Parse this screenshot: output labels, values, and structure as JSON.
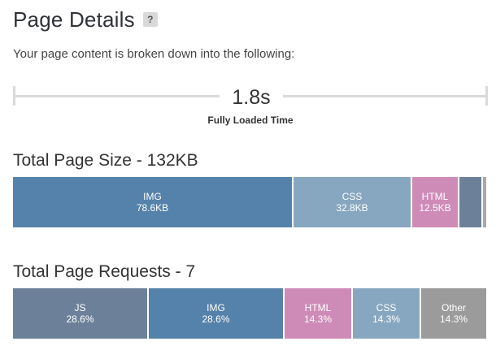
{
  "header": {
    "title": "Page Details",
    "help_label": "?"
  },
  "intro": "Your page content is broken down into the following:",
  "load_time": {
    "value": "1.8s",
    "label": "Fully Loaded Time"
  },
  "page_size": {
    "title": "Total Page Size - 132KB",
    "segments": [
      {
        "label": "IMG",
        "value": "78.6KB",
        "share": 0.59,
        "color": "#5582aa"
      },
      {
        "label": "CSS",
        "value": "32.8KB",
        "share": 0.25,
        "color": "#87a7c0"
      },
      {
        "label": "HTML",
        "value": "12.5KB",
        "share": 0.1,
        "color": "#cf8bb8"
      },
      {
        "label": "",
        "value": "",
        "share": 0.05,
        "color": "#6c8199"
      },
      {
        "label": "",
        "value": "",
        "share": 0.01,
        "color": "#a8a8a8"
      }
    ]
  },
  "page_requests": {
    "title": "Total Page Requests - 7",
    "segments": [
      {
        "label": "JS",
        "value": "28.6%",
        "share": 0.286,
        "color": "#6c8199"
      },
      {
        "label": "IMG",
        "value": "28.6%",
        "share": 0.286,
        "color": "#5582aa"
      },
      {
        "label": "HTML",
        "value": "14.3%",
        "share": 0.143,
        "color": "#cf8bb8"
      },
      {
        "label": "CSS",
        "value": "14.3%",
        "share": 0.143,
        "color": "#87a7c0"
      },
      {
        "label": "Other",
        "value": "14.3%",
        "share": 0.142,
        "color": "#9b9b9b"
      }
    ]
  }
}
